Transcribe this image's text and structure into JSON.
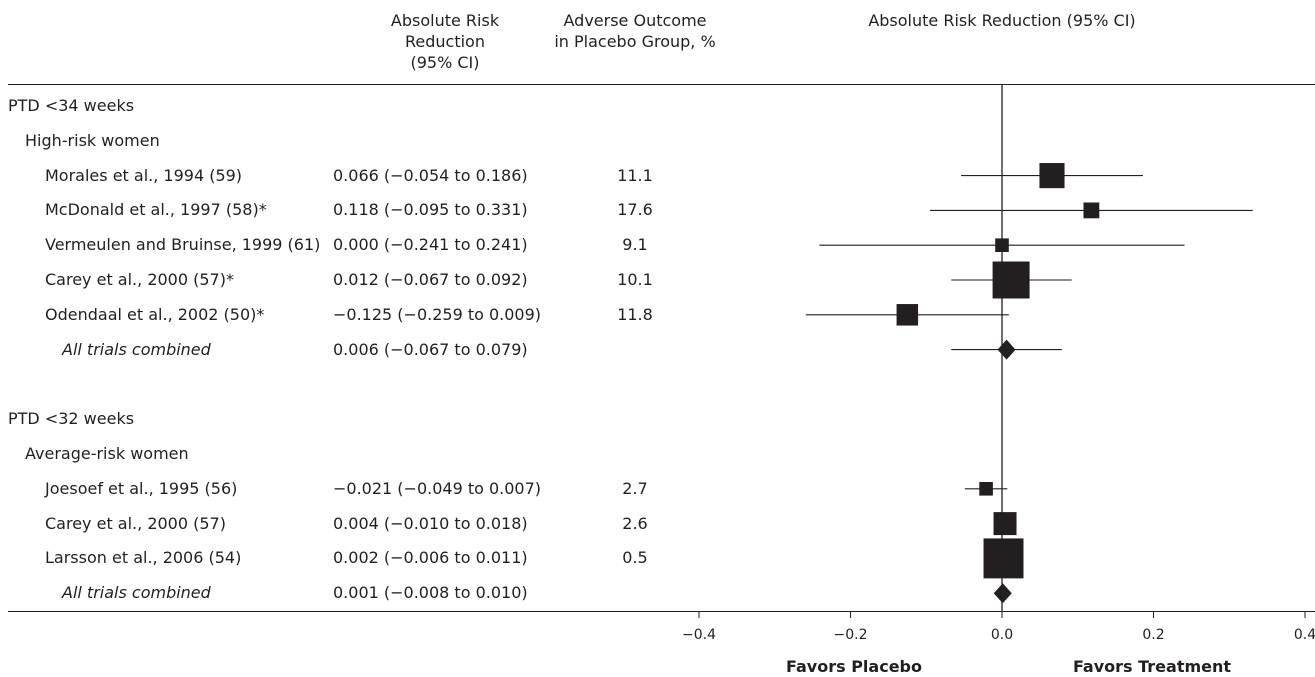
{
  "headers": {
    "arr_ci": [
      "Absolute Risk",
      "Reduction",
      "(95% CI)"
    ],
    "placebo": [
      "Adverse Outcome",
      "in Placebo Group, %"
    ],
    "plot": "Absolute Risk Reduction (95% CI)"
  },
  "rows": [
    {
      "kind": "section",
      "label": "PTD <34 weeks"
    },
    {
      "kind": "group",
      "label": "High-risk women"
    },
    {
      "kind": "trial",
      "label": "Morales et al., 1994 (59)",
      "ci_text": "0.066 (−0.054 to 0.186)",
      "placebo_pct": "11.1"
    },
    {
      "kind": "trial",
      "label": "McDonald et al., 1997 (58)*",
      "ci_text": "0.118 (−0.095 to 0.331)",
      "placebo_pct": "17.6"
    },
    {
      "kind": "trial",
      "label": "Vermeulen and Bruinse, 1999 (61)",
      "ci_text": "0.000 (−0.241 to 0.241)",
      "placebo_pct": "9.1"
    },
    {
      "kind": "trial",
      "label": "Carey et al., 2000 (57)*",
      "ci_text": "0.012 (−0.067 to 0.092)",
      "placebo_pct": "10.1"
    },
    {
      "kind": "trial",
      "label": "Odendaal et al., 2002 (50)*",
      "ci_text": "−0.125 (−0.259 to 0.009)",
      "placebo_pct": "11.8"
    },
    {
      "kind": "combined",
      "label": "All trials combined",
      "ci_text": "0.006 (−0.067 to 0.079)",
      "placebo_pct": ""
    },
    {
      "kind": "blank",
      "label": ""
    },
    {
      "kind": "section",
      "label": "PTD <32 weeks"
    },
    {
      "kind": "group",
      "label": "Average-risk women"
    },
    {
      "kind": "trial",
      "label": "Joesoef et al., 1995 (56)",
      "ci_text": "−0.021 (−0.049 to 0.007)",
      "placebo_pct": "2.7"
    },
    {
      "kind": "trial",
      "label": "Carey et al., 2000 (57)",
      "ci_text": "0.004 (−0.010 to 0.018)",
      "placebo_pct": "2.6"
    },
    {
      "kind": "trial",
      "label": "Larsson et al., 2006 (54)",
      "ci_text": "0.002 (−0.006 to 0.011)",
      "placebo_pct": "0.5"
    },
    {
      "kind": "combined",
      "label": "All trials combined",
      "ci_text": "0.001 (−0.008 to 0.010)",
      "placebo_pct": ""
    }
  ],
  "axis": {
    "ticks": [
      -0.4,
      -0.2,
      0.0,
      0.2,
      0.4
    ],
    "tick_labels": [
      "−0.4",
      "−0.2",
      "0.0",
      "0.2",
      "0.4"
    ],
    "left_label": "Favors Placebo",
    "right_label": "Favors Treatment"
  },
  "chart_data": {
    "type": "forest",
    "title": "Absolute Risk Reduction (95% CI)",
    "xlim": [
      -0.4,
      0.4
    ],
    "reference_line": 0,
    "series": [
      {
        "name": "Morales et al., 1994 (59)",
        "estimate": 0.066,
        "lower": -0.054,
        "upper": 0.186,
        "weight": 0.38
      },
      {
        "name": "McDonald et al., 1997 (58)*",
        "estimate": 0.118,
        "lower": -0.095,
        "upper": 0.331,
        "weight": 0.1
      },
      {
        "name": "Vermeulen and Bruinse, 1999 (61)",
        "estimate": 0.0,
        "lower": -0.241,
        "upper": 0.241,
        "weight": 0.06
      },
      {
        "name": "Carey et al., 2000 (57)*",
        "estimate": 0.012,
        "lower": -0.067,
        "upper": 0.092,
        "weight": 1.0
      },
      {
        "name": "Odendaal et al., 2002 (50)*",
        "estimate": -0.125,
        "lower": -0.259,
        "upper": 0.009,
        "weight": 0.25
      },
      {
        "name": "All trials combined",
        "estimate": 0.006,
        "lower": -0.067,
        "upper": 0.079,
        "combined": true
      },
      {
        "name": "Joesoef et al., 1995 (56)",
        "estimate": -0.021,
        "lower": -0.049,
        "upper": 0.007,
        "weight": 0.06
      },
      {
        "name": "Carey et al., 2000 (57)",
        "estimate": 0.004,
        "lower": -0.01,
        "upper": 0.018,
        "weight": 0.3
      },
      {
        "name": "Larsson et al., 2006 (54)",
        "estimate": 0.002,
        "lower": -0.006,
        "upper": 0.011,
        "weight": 1.2
      },
      {
        "name": "All trials combined",
        "estimate": 0.001,
        "lower": -0.008,
        "upper": 0.01,
        "combined": true
      }
    ]
  }
}
